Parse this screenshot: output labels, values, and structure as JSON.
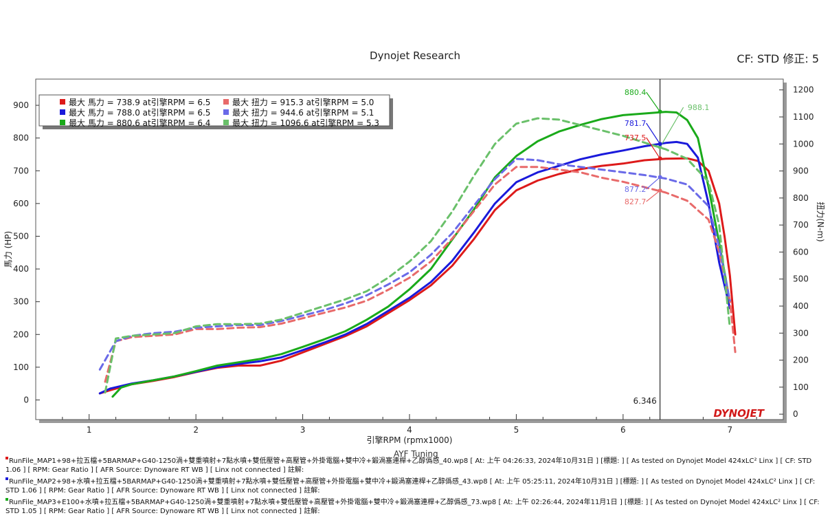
{
  "header": {
    "title": "Dynojet Research",
    "cf_label": "CF: STD 修正: 5"
  },
  "watermark": "AYF Tuning",
  "logo_text": "DYNOJET",
  "colors": {
    "run1": "#dd1a1a",
    "run2": "#1a1adb",
    "run3": "#1aaa1a",
    "run1_tq": "#e86a6a",
    "run2_tq": "#6a6ae8",
    "run3_tq": "#6ac06a"
  },
  "chart_data": {
    "type": "line",
    "title": "Dynojet Research",
    "xlabel": "引擎RPM (rpmx1000)",
    "ylabel_left": "馬力 (HP)",
    "ylabel_right": "扭力(N-m)",
    "xlim": [
      0.5,
      7.5
    ],
    "ylim_left": [
      -60,
      980
    ],
    "ylim_right": [
      -20,
      1240
    ],
    "x_ticks": [
      1,
      2,
      3,
      4,
      5,
      6,
      7
    ],
    "y_ticks_left": [
      0,
      100,
      200,
      300,
      400,
      500,
      600,
      700,
      800,
      900
    ],
    "y_ticks_right": [
      0,
      100,
      200,
      300,
      400,
      500,
      600,
      700,
      800,
      900,
      1000,
      1100,
      1200
    ],
    "cursor_rpm": 6.346,
    "cursor_label": "6.346",
    "legend": [
      {
        "color_key": "run1",
        "text": "最大 馬力 = 738.9 at引擎RPM = 6.5"
      },
      {
        "color_key": "run1_tq",
        "text": "最大 扭力 = 915.3 at引擎RPM = 5.0"
      },
      {
        "color_key": "run2",
        "text": "最大 馬力 = 788.0 at引擎RPM = 6.5"
      },
      {
        "color_key": "run2_tq",
        "text": "最大 扭力 = 944.6 at引擎RPM = 5.1"
      },
      {
        "color_key": "run3",
        "text": "最大 馬力 = 880.6 at引擎RPM = 6.4"
      },
      {
        "color_key": "run3_tq",
        "text": "最大 扭力 = 1096.6 at引擎RPM = 5.3"
      }
    ],
    "annotations": [
      {
        "text": "880.4",
        "color_key": "run3",
        "value": 880.4,
        "axis": "left"
      },
      {
        "text": "988.1",
        "color_key": "run3_tq",
        "value": 988.1,
        "axis": "right"
      },
      {
        "text": "781.7",
        "color_key": "run2",
        "value": 781.7,
        "axis": "left"
      },
      {
        "text": "737.5",
        "color_key": "run1",
        "value": 737.5,
        "axis": "left"
      },
      {
        "text": "877.2",
        "color_key": "run2_tq",
        "value": 877.2,
        "axis": "right"
      },
      {
        "text": "827.7",
        "color_key": "run1_tq",
        "value": 827.7,
        "axis": "right"
      }
    ],
    "series": [
      {
        "name": "Run1 HP",
        "axis": "left",
        "style": "solid",
        "color_key": "run1",
        "x": [
          1.1,
          1.2,
          1.4,
          1.6,
          1.8,
          2.0,
          2.2,
          2.4,
          2.6,
          2.8,
          3.0,
          3.2,
          3.4,
          3.6,
          3.8,
          4.0,
          4.2,
          4.4,
          4.6,
          4.8,
          5.0,
          5.2,
          5.4,
          5.6,
          5.8,
          6.0,
          6.2,
          6.4,
          6.6,
          6.7,
          6.8,
          6.9,
          6.95,
          7.0,
          7.05
        ],
        "y": [
          20,
          30,
          48,
          58,
          70,
          85,
          98,
          105,
          105,
          120,
          145,
          170,
          195,
          225,
          265,
          305,
          350,
          410,
          490,
          580,
          640,
          670,
          690,
          705,
          715,
          722,
          732,
          737,
          738,
          730,
          700,
          600,
          500,
          380,
          200
        ]
      },
      {
        "name": "Run2 HP",
        "axis": "left",
        "style": "solid",
        "color_key": "run2",
        "x": [
          1.1,
          1.2,
          1.4,
          1.6,
          1.8,
          2.0,
          2.2,
          2.4,
          2.6,
          2.8,
          3.0,
          3.2,
          3.4,
          3.6,
          3.8,
          4.0,
          4.2,
          4.4,
          4.6,
          4.8,
          5.0,
          5.2,
          5.4,
          5.6,
          5.8,
          6.0,
          6.2,
          6.4,
          6.5,
          6.6,
          6.7,
          6.8,
          6.9,
          7.0
        ],
        "y": [
          20,
          35,
          50,
          60,
          72,
          86,
          100,
          110,
          118,
          130,
          152,
          175,
          200,
          232,
          272,
          312,
          360,
          425,
          510,
          600,
          665,
          695,
          715,
          735,
          750,
          762,
          775,
          785,
          788,
          782,
          740,
          600,
          420,
          280
        ]
      },
      {
        "name": "Run3 HP",
        "axis": "left",
        "style": "solid",
        "color_key": "run3",
        "x": [
          1.22,
          1.3,
          1.4,
          1.6,
          1.8,
          2.0,
          2.2,
          2.4,
          2.6,
          2.8,
          3.0,
          3.2,
          3.4,
          3.6,
          3.8,
          4.0,
          4.2,
          4.4,
          4.6,
          4.8,
          5.0,
          5.2,
          5.4,
          5.6,
          5.8,
          6.0,
          6.2,
          6.4,
          6.5,
          6.6,
          6.7,
          6.8,
          6.9,
          7.0
        ],
        "y": [
          10,
          38,
          48,
          60,
          72,
          88,
          105,
          115,
          125,
          140,
          162,
          185,
          210,
          245,
          285,
          338,
          400,
          490,
          580,
          680,
          745,
          790,
          820,
          840,
          858,
          870,
          875,
          880,
          878,
          855,
          800,
          650,
          480,
          300
        ]
      },
      {
        "name": "Run1 TQ",
        "axis": "right",
        "style": "dashed",
        "color_key": "run1_tq",
        "x": [
          1.15,
          1.25,
          1.4,
          1.6,
          1.8,
          2.0,
          2.2,
          2.4,
          2.6,
          2.8,
          3.0,
          3.2,
          3.4,
          3.6,
          3.8,
          4.0,
          4.2,
          4.4,
          4.6,
          4.8,
          5.0,
          5.2,
          5.4,
          5.6,
          5.8,
          6.0,
          6.2,
          6.4,
          6.6,
          6.8,
          6.9,
          7.0,
          7.05
        ],
        "y": [
          120,
          270,
          285,
          290,
          295,
          315,
          315,
          320,
          322,
          335,
          355,
          375,
          395,
          420,
          460,
          505,
          565,
          650,
          750,
          850,
          915,
          915,
          905,
          895,
          875,
          860,
          840,
          820,
          790,
          720,
          600,
          420,
          230
        ]
      },
      {
        "name": "Run2 TQ",
        "axis": "right",
        "style": "dashed",
        "color_key": "run2_tq",
        "x": [
          1.1,
          1.25,
          1.4,
          1.6,
          1.8,
          2.0,
          2.2,
          2.4,
          2.6,
          2.8,
          3.0,
          3.2,
          3.4,
          3.6,
          3.8,
          4.0,
          4.2,
          4.4,
          4.6,
          4.8,
          5.0,
          5.2,
          5.4,
          5.6,
          5.8,
          6.0,
          6.2,
          6.4,
          6.6,
          6.8,
          6.9,
          7.0
        ],
        "y": [
          165,
          270,
          290,
          300,
          305,
          320,
          325,
          330,
          330,
          345,
          365,
          385,
          410,
          440,
          480,
          525,
          590,
          670,
          770,
          870,
          945,
          940,
          925,
          915,
          905,
          895,
          885,
          872,
          850,
          770,
          620,
          420
        ]
      },
      {
        "name": "Run3 TQ",
        "axis": "right",
        "style": "dashed",
        "color_key": "run3_tq",
        "x": [
          1.15,
          1.25,
          1.4,
          1.6,
          1.8,
          2.0,
          2.2,
          2.4,
          2.6,
          2.8,
          3.0,
          3.2,
          3.4,
          3.6,
          3.8,
          4.0,
          4.2,
          4.4,
          4.6,
          4.8,
          5.0,
          5.2,
          5.4,
          5.6,
          5.8,
          6.0,
          6.2,
          6.4,
          6.6,
          6.8,
          6.9,
          7.0
        ],
        "y": [
          80,
          280,
          290,
          295,
          300,
          325,
          333,
          333,
          335,
          350,
          375,
          400,
          425,
          455,
          505,
          565,
          640,
          750,
          880,
          1000,
          1075,
          1095,
          1090,
          1070,
          1050,
          1030,
          1005,
          980,
          945,
          860,
          700,
          320
        ]
      }
    ]
  },
  "footer": [
    "RunFile_MAP1+98+拉五檔+5BARMAP+G40-1250渦+雙重噴射+7點水噴+雙低壓管+高壓管+外掛電腦+雙中冷+鍛渦塞連桿+乙醇僞感_40.wp8 [ At: 上午 04:26:33,  2024年10月31日 ] [標題: ]  [ As tested on Dynojet Model 424xLC² Linx ] [ CF: STD 1.06 ] [ RPM: Gear Ratio ] [ AFR Source: Dynoware RT WB ] [ Linx not connected ] 註解:",
    "RunFile_MAP2+98+水噴+拉五檔+5BARMAP+G40-1250渦+雙重噴射+7點水噴+雙低壓管+高壓管+外掛電腦+雙中冷+鍛渦塞連桿+乙醇僞感_43.wp8 [ At: 上午 05:25:11,  2024年10月31日 ] [標題: ]  [ As tested on Dynojet Model 424xLC² Linx ] [ CF: STD 1.06 ] [ RPM: Gear Ratio ] [ AFR Source: Dynoware RT WB ] [ Linx not connected ] 註解:",
    "RunFile_MAP3+E100+水噴+拉五檔+5BARMAP+G40-1250渦+雙重噴射+7點水噴+雙低壓管+高壓管+外掛電腦+雙中冷+鍛渦塞連桿+乙醇僞感_73.wp8 [ At: 上午 02:26:44,  2024年11月1日 ] [標題: ]  [ As tested on Dynojet Model 424xLC² Linx ] [ CF: STD 1.05 ] [ RPM: Gear Ratio ] [ AFR Source: Dynoware RT WB ] [ Linx not connected ] 註解:"
  ]
}
